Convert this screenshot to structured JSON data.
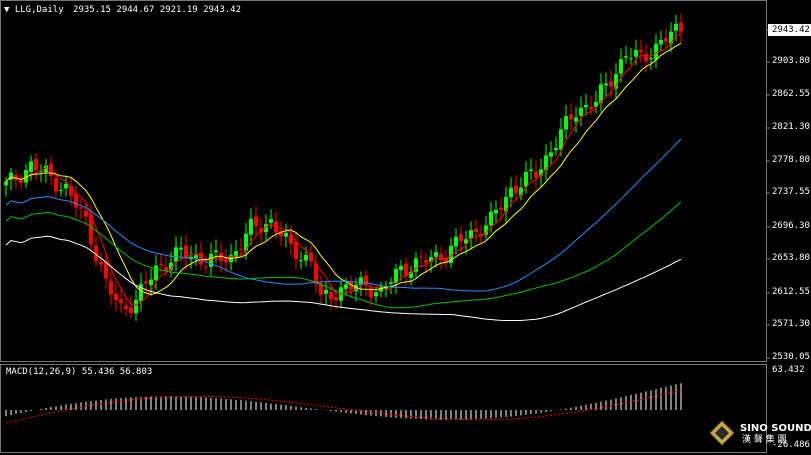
{
  "header": {
    "symbol_label": "LLG,Daily",
    "ohlc_text": "2935.15 2944.67 2921.19 2943.42",
    "menu_icon": "triangle-down-icon"
  },
  "price_axis": {
    "ticks": [
      "2943.42",
      "2903.80",
      "2862.55",
      "2821.30",
      "2778.80",
      "2737.55",
      "2696.30",
      "2653.80",
      "2612.55",
      "2571.30",
      "2530.05"
    ],
    "current_price": "2943.42"
  },
  "macd": {
    "label": "MACD(12,26,9) 55.436 56.803",
    "axis_top": "63.432",
    "axis_bottom": "-26.486"
  },
  "watermark": {
    "brand": "SINO SOUND",
    "brand_cn": "漢 聲 集 團",
    "logo_icon": "diamond-logo-icon"
  },
  "colors": {
    "background": "#000000",
    "bull": "#00ff00",
    "bear": "#ff0000",
    "ma_fast": "#ff0000",
    "ma_mid": "#ffff00",
    "ma_blue": "#1e90ff",
    "ma_green": "#00c000",
    "ma_white": "#ffffff",
    "macd_hist": "#ffffff",
    "macd_signal": "#ff0000"
  }
}
